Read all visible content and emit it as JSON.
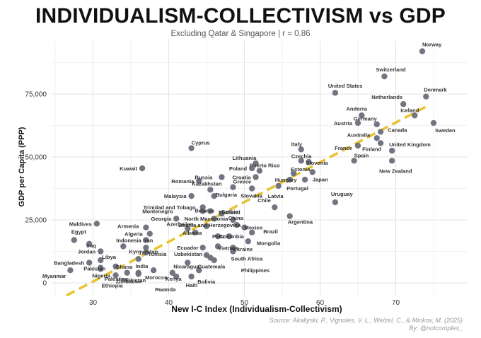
{
  "chart_data": {
    "type": "scatter",
    "title": "INDIVIDUALISM-COLLECTIVISM vs GDP",
    "subtitle": "Excluding Qatar & Singapore  |  r = 0.86",
    "xlabel": "New I-C Index (Individualism-Collectivism)",
    "ylabel": "GDP per Capita (PPP)",
    "xlim": [
      25.5,
      75.5
    ],
    "ylim": [
      -5000,
      95000
    ],
    "x_ticks": [
      "30",
      "40",
      "50",
      "60",
      "70"
    ],
    "y_ticks": [
      "0",
      "25,000",
      "50,000",
      "75,000"
    ],
    "grid": true,
    "trend_line": {
      "x": [
        26.5,
        74.0
      ],
      "y": [
        -5000,
        70000
      ],
      "color": "#e8c230",
      "style": "dashed"
    },
    "point_color": "#6b6f7b",
    "points": [
      {
        "label": "Norway",
        "x": 73.5,
        "y": 92000
      },
      {
        "label": "Switzerland",
        "x": 68.5,
        "y": 82000
      },
      {
        "label": "United States",
        "x": 62.0,
        "y": 75500
      },
      {
        "label": "Denmark",
        "x": 74.0,
        "y": 74000
      },
      {
        "label": "Netherlands",
        "x": 71.0,
        "y": 71000
      },
      {
        "label": "Iceland",
        "x": 72.5,
        "y": 66500
      },
      {
        "label": "Andorra",
        "x": 65.5,
        "y": 66500
      },
      {
        "label": "Austria",
        "x": 65.0,
        "y": 63500
      },
      {
        "label": "Germany",
        "x": 67.5,
        "y": 63000
      },
      {
        "label": "Sweden",
        "x": 75.0,
        "y": 63500
      },
      {
        "label": "Canada",
        "x": 68.0,
        "y": 60000
      },
      {
        "label": "Australia",
        "x": 67.5,
        "y": 57500
      },
      {
        "label": "Finland",
        "x": 68.0,
        "y": 55500
      },
      {
        "label": "France",
        "x": 65.0,
        "y": 54500
      },
      {
        "label": "United Kingdom",
        "x": 69.5,
        "y": 52500
      },
      {
        "label": "Spain",
        "x": 64.5,
        "y": 48500
      },
      {
        "label": "New Zealand",
        "x": 69.5,
        "y": 48500
      },
      {
        "label": "Italy",
        "x": 57.5,
        "y": 53000
      },
      {
        "label": "Cyprus",
        "x": 43.0,
        "y": 53500
      },
      {
        "label": "Czechia",
        "x": 57.5,
        "y": 48500
      },
      {
        "label": "Slovenia",
        "x": 58.5,
        "y": 48000
      },
      {
        "label": "Lithuania",
        "x": 51.5,
        "y": 47500
      },
      {
        "label": "Poland",
        "x": 51.0,
        "y": 45500
      },
      {
        "label": "Puerto Rico",
        "x": 52.0,
        "y": 44500
      },
      {
        "label": "Japan",
        "x": 59.0,
        "y": 44000
      },
      {
        "label": "Estonia",
        "x": 56.5,
        "y": 43500
      },
      {
        "label": "Croatia",
        "x": 51.5,
        "y": 42000
      },
      {
        "label": "Hungary",
        "x": 56.0,
        "y": 41000
      },
      {
        "label": "Portugal",
        "x": 58.0,
        "y": 41000
      },
      {
        "label": "Kuwait",
        "x": 36.5,
        "y": 45500
      },
      {
        "label": "Russia",
        "x": 47.0,
        "y": 42000
      },
      {
        "label": "Romania",
        "x": 44.0,
        "y": 40500
      },
      {
        "label": "Greece",
        "x": 48.5,
        "y": 38000
      },
      {
        "label": "Slovakia",
        "x": 51.0,
        "y": 37500
      },
      {
        "label": "Latvia",
        "x": 54.5,
        "y": 38500
      },
      {
        "label": "Kazakhstan",
        "x": 45.5,
        "y": 37000
      },
      {
        "label": "Malaysia",
        "x": 43.0,
        "y": 34500
      },
      {
        "label": "Bulgaria",
        "x": 46.0,
        "y": 34500
      },
      {
        "label": "Uruguay",
        "x": 62.0,
        "y": 32000
      },
      {
        "label": "Chile",
        "x": 54.0,
        "y": 30000
      },
      {
        "label": "Montenegro",
        "x": 44.5,
        "y": 28500
      },
      {
        "label": "Trinidad and Tobago",
        "x": 44.5,
        "y": 30000
      },
      {
        "label": "Belarus",
        "x": 45.5,
        "y": 28500
      },
      {
        "label": "Serbia",
        "x": 47.0,
        "y": 27500
      },
      {
        "label": "Georgia",
        "x": 41.0,
        "y": 25500
      },
      {
        "label": "North Macedonia",
        "x": 46.0,
        "y": 25500
      },
      {
        "label": "Thailand",
        "x": 48.5,
        "y": 25000
      },
      {
        "label": "Bosnia and Herzegovina",
        "x": 45.0,
        "y": 22500
      },
      {
        "label": "China",
        "x": 49.0,
        "y": 23000
      },
      {
        "label": "Argentina",
        "x": 56.0,
        "y": 26500
      },
      {
        "label": "Maldives",
        "x": 30.5,
        "y": 23500
      },
      {
        "label": "Armenia",
        "x": 37.0,
        "y": 22000
      },
      {
        "label": "Azerbaijan",
        "x": 42.5,
        "y": 21500
      },
      {
        "label": "Mexico",
        "x": 50.0,
        "y": 22000
      },
      {
        "label": "Brazil",
        "x": 51.0,
        "y": 20000
      },
      {
        "label": "Albania",
        "x": 43.5,
        "y": 20000
      },
      {
        "label": "Algeria",
        "x": 37.5,
        "y": 19500
      },
      {
        "label": "Peru",
        "x": 46.5,
        "y": 18500
      },
      {
        "label": "Colombia",
        "x": 48.0,
        "y": 18500
      },
      {
        "label": "Egypt",
        "x": 27.5,
        "y": 17000
      },
      {
        "label": "Iran",
        "x": 37.0,
        "y": 17000
      },
      {
        "label": "Mongolia",
        "x": 50.5,
        "y": 16500
      },
      {
        "label": "Iraq",
        "x": 29.5,
        "y": 15500
      },
      {
        "label": "Indonesia",
        "x": 34.0,
        "y": 14500
      },
      {
        "label": "Tunisia",
        "x": 37.0,
        "y": 14000
      },
      {
        "label": "Ecuador",
        "x": 44.5,
        "y": 14000
      },
      {
        "label": "Vietnam",
        "x": 46.5,
        "y": 14500
      },
      {
        "label": "Ukraine",
        "x": 48.5,
        "y": 14000
      },
      {
        "label": "Kyrgyzstan",
        "x": 37.0,
        "y": 12000
      },
      {
        "label": "Jordan",
        "x": 31.0,
        "y": 12500
      },
      {
        "label": "South Africa",
        "x": 48.5,
        "y": 12500
      },
      {
        "label": "Uzbekistan",
        "x": 45.0,
        "y": 11000
      },
      {
        "label": "Guatemala",
        "x": 45.5,
        "y": 10000
      },
      {
        "label": "Libya",
        "x": 31.0,
        "y": 9000
      },
      {
        "label": "India",
        "x": 36.0,
        "y": 9500
      },
      {
        "label": "Nicaragua",
        "x": 42.5,
        "y": 8000
      },
      {
        "label": "Philippines",
        "x": 46.0,
        "y": 9000
      },
      {
        "label": "Bangladesh",
        "x": 29.5,
        "y": 8000
      },
      {
        "label": "Pakistan",
        "x": 31.0,
        "y": 5500
      },
      {
        "label": "Ghana",
        "x": 33.0,
        "y": 6500
      },
      {
        "label": "Palestine",
        "x": 34.5,
        "y": 4000
      },
      {
        "label": "Morocco",
        "x": 38.0,
        "y": 5000
      },
      {
        "label": "Bolivia",
        "x": 44.0,
        "y": 5000
      },
      {
        "label": "Myanmar",
        "x": 27.0,
        "y": 5000
      },
      {
        "label": "Nigeria",
        "x": 31.0,
        "y": 6000
      },
      {
        "label": "Tajikistan",
        "x": 36.0,
        "y": 4000
      },
      {
        "label": "Kenya",
        "x": 40.5,
        "y": 4000
      },
      {
        "label": "Ethiopia",
        "x": 33.0,
        "y": 3000
      },
      {
        "label": "Zimbabwe",
        "x": 36.0,
        "y": 3500
      },
      {
        "label": "Rwanda",
        "x": 41.0,
        "y": 2500
      },
      {
        "label": "Haiti",
        "x": 43.0,
        "y": 2500
      }
    ]
  },
  "caption": {
    "source": "Source: Akaliyski, P., Vignoles, V. L., Welzel, C., & Minkov, M. (2025)",
    "by": "By: @notcomplex_"
  }
}
